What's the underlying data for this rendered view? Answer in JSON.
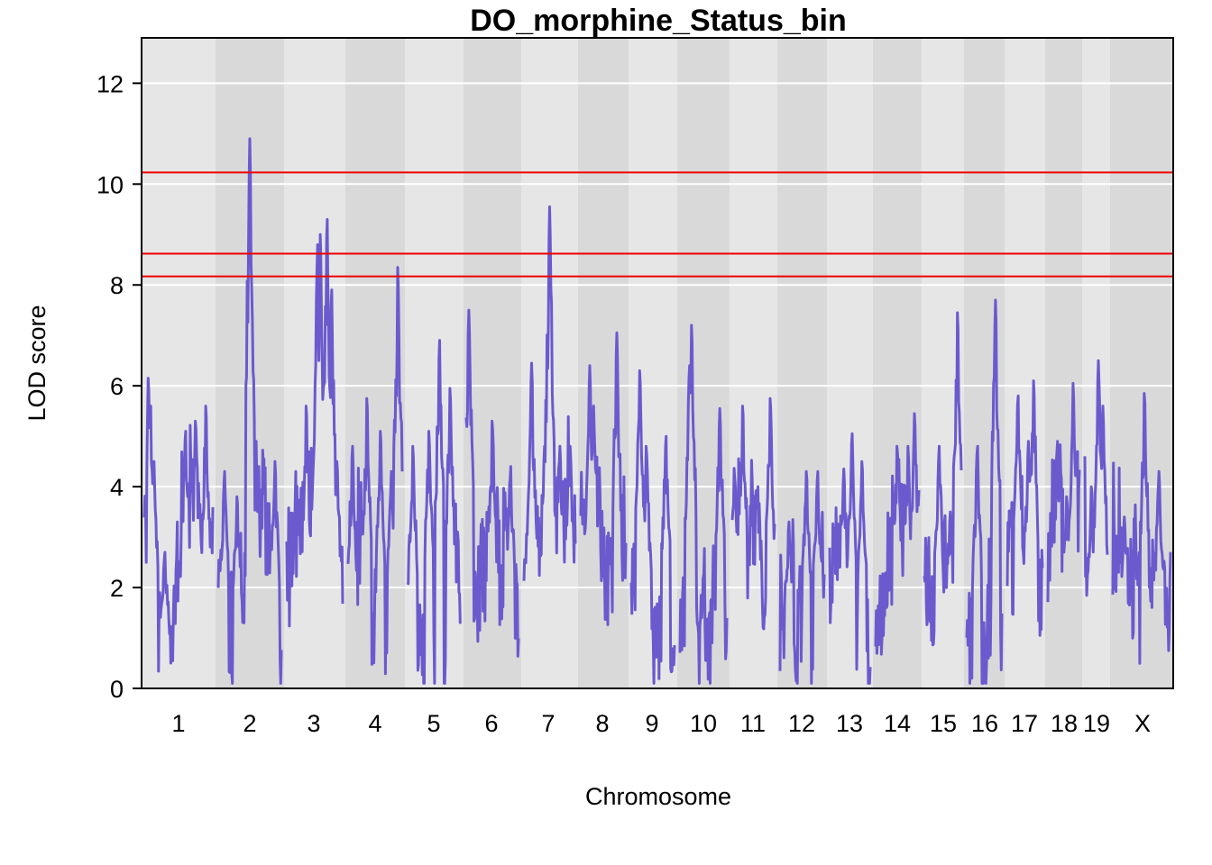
{
  "chart_data": {
    "type": "line",
    "title": "DO_morphine_Status_bin",
    "xlabel": "Chromosome",
    "ylabel": "LOD score",
    "ylim": [
      0,
      12.9
    ],
    "yticks": [
      0,
      2,
      4,
      6,
      8,
      10,
      12
    ],
    "grid": true,
    "colors": {
      "line": "#6a5acd",
      "threshold": "#ee0000",
      "band_light": "#e6e6e6",
      "band_dark": "#d9d9d9",
      "grid": "#ffffff"
    },
    "thresholds": [
      10.23,
      8.62,
      8.17
    ],
    "chromosomes": [
      {
        "label": "1",
        "peaks": [
          [
            0.03,
            2.5
          ],
          [
            0.06,
            6.15
          ],
          [
            0.09,
            5.6
          ],
          [
            0.14,
            4.5
          ],
          [
            0.3,
            2.7
          ],
          [
            0.6,
            5.1
          ],
          [
            0.75,
            5.3
          ],
          [
            0.9,
            5.6
          ]
        ]
      },
      {
        "label": "2",
        "peaks": [
          [
            0.1,
            4.3
          ],
          [
            0.3,
            3.8
          ],
          [
            0.5,
            10.9
          ],
          [
            0.6,
            4.9
          ],
          [
            0.9,
            4.5
          ]
        ]
      },
      {
        "label": "3",
        "peaks": [
          [
            0.35,
            5.6
          ],
          [
            0.55,
            8.8
          ],
          [
            0.6,
            9.0
          ],
          [
            0.72,
            9.3
          ],
          [
            0.8,
            7.9
          ],
          [
            0.9,
            4.5
          ]
        ]
      },
      {
        "label": "4",
        "peaks": [
          [
            0.08,
            4.8
          ],
          [
            0.35,
            5.75
          ],
          [
            0.6,
            5.1
          ],
          [
            0.8,
            4.3
          ],
          [
            0.92,
            8.35
          ]
        ]
      },
      {
        "label": "5",
        "peaks": [
          [
            0.1,
            4.8
          ],
          [
            0.4,
            5.1
          ],
          [
            0.6,
            6.9
          ],
          [
            0.8,
            5.95
          ]
        ]
      },
      {
        "label": "6",
        "peaks": [
          [
            0.05,
            7.5
          ],
          [
            0.5,
            5.3
          ],
          [
            0.85,
            4.4
          ]
        ]
      },
      {
        "label": "7",
        "peaks": [
          [
            0.15,
            6.45
          ],
          [
            0.4,
            4.8
          ],
          [
            0.5,
            9.55
          ],
          [
            0.7,
            4.8
          ],
          [
            0.9,
            4.8
          ]
        ]
      },
      {
        "label": "8",
        "peaks": [
          [
            0.2,
            6.4
          ],
          [
            0.28,
            5.6
          ],
          [
            0.8,
            7.05
          ]
        ]
      },
      {
        "label": "9",
        "peaks": [
          [
            0.2,
            6.3
          ],
          [
            0.35,
            4.8
          ],
          [
            0.8,
            5.0
          ]
        ]
      },
      {
        "label": "10",
        "peaks": [
          [
            0.2,
            6.4
          ],
          [
            0.25,
            7.2
          ],
          [
            0.85,
            5.55
          ]
        ]
      },
      {
        "label": "11",
        "peaks": [
          [
            0.25,
            5.6
          ],
          [
            0.6,
            4.0
          ],
          [
            0.9,
            5.75
          ]
        ]
      },
      {
        "label": "12",
        "peaks": [
          [
            0.2,
            3.3
          ],
          [
            0.6,
            4.3
          ],
          [
            0.85,
            4.3
          ]
        ]
      },
      {
        "label": "13",
        "peaks": [
          [
            0.35,
            4.35
          ],
          [
            0.55,
            5.05
          ],
          [
            0.8,
            4.5
          ]
        ]
      },
      {
        "label": "14",
        "peaks": [
          [
            0.5,
            4.8
          ],
          [
            0.75,
            4.8
          ],
          [
            0.9,
            5.45
          ]
        ]
      },
      {
        "label": "15",
        "peaks": [
          [
            0.4,
            4.8
          ],
          [
            0.7,
            3.5
          ],
          [
            0.9,
            7.45
          ]
        ]
      },
      {
        "label": "16",
        "peaks": [
          [
            0.3,
            4.8
          ],
          [
            0.82,
            7.7
          ]
        ]
      },
      {
        "label": "17",
        "peaks": [
          [
            0.3,
            5.8
          ],
          [
            0.6,
            4.9
          ],
          [
            0.75,
            6.1
          ]
        ]
      },
      {
        "label": "18",
        "peaks": [
          [
            0.3,
            4.9
          ],
          [
            0.6,
            3.8
          ],
          [
            0.8,
            6.05
          ]
        ]
      },
      {
        "label": "19",
        "peaks": [
          [
            0.3,
            4.0
          ],
          [
            0.6,
            6.5
          ],
          [
            0.8,
            5.6
          ]
        ]
      },
      {
        "label": "X",
        "peaks": [
          [
            0.2,
            3.4
          ],
          [
            0.55,
            5.85
          ],
          [
            0.8,
            4.3
          ]
        ]
      }
    ]
  }
}
